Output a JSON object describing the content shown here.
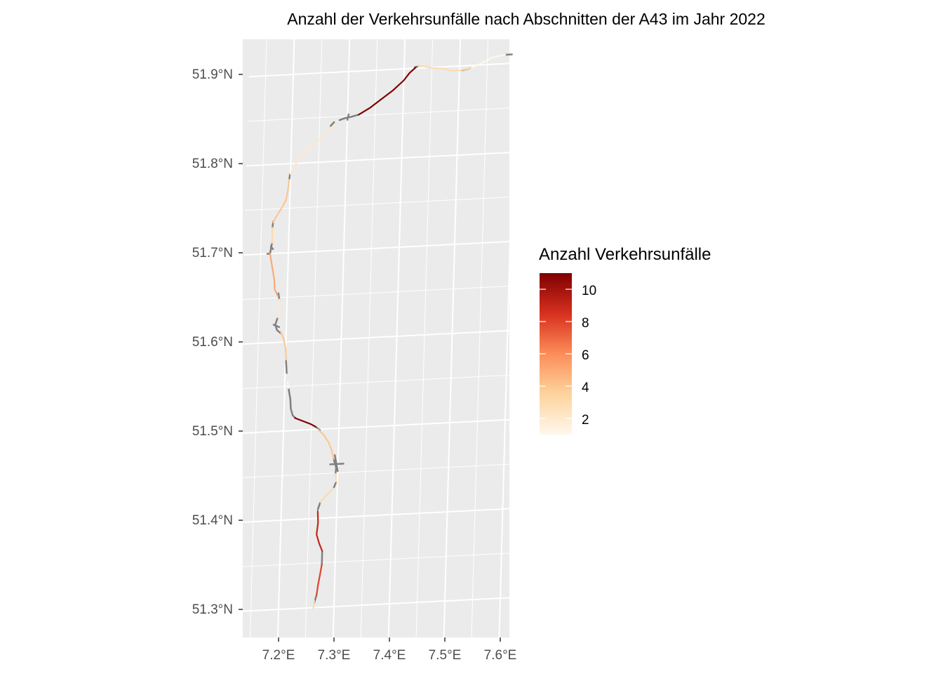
{
  "chart_data": {
    "type": "map",
    "title": "Anzahl der Verkehrsunfälle nach Abschnitten der A43 im Jahr 2022",
    "xlabel": "",
    "ylabel": "",
    "x_ticks": [
      "7.2°E",
      "7.3°E",
      "7.4°E",
      "7.5°E",
      "7.6°E"
    ],
    "y_ticks": [
      "51.3°N",
      "51.4°N",
      "51.5°N",
      "51.6°N",
      "51.7°N",
      "51.8°N",
      "51.9°N"
    ],
    "lon_range": [
      7.14,
      7.62
    ],
    "lat_range": [
      51.27,
      51.94
    ],
    "grid": true,
    "panel_background": "#ebebeb",
    "no_data_color": "#808080",
    "legend": {
      "title": "Anzahl Verkehrsunfälle",
      "placement": "right",
      "labels": [
        "2",
        "4",
        "6",
        "8",
        "10"
      ],
      "range": [
        1,
        11
      ],
      "colors": [
        "#fff7ec",
        "#fdd49e",
        "#fc8d59",
        "#d7301f",
        "#7f0000"
      ]
    },
    "segments": [
      {
        "value": 1,
        "points": [
          [
            7.582,
            51.91
          ],
          [
            7.56,
            51.908
          ],
          [
            7.54,
            51.902
          ],
          [
            7.52,
            51.897
          ]
        ]
      },
      {
        "value": 3,
        "points": [
          [
            7.52,
            51.897
          ],
          [
            7.5,
            51.895
          ],
          [
            7.485,
            51.895
          ],
          [
            7.47,
            51.898
          ],
          [
            7.455,
            51.899
          ],
          [
            7.445,
            51.9
          ],
          [
            7.435,
            51.902
          ],
          [
            7.426,
            51.902
          ]
        ]
      },
      {
        "value": 11,
        "points": [
          [
            7.421,
            51.901
          ],
          [
            7.41,
            51.895
          ],
          [
            7.4,
            51.887
          ],
          [
            7.38,
            51.876
          ],
          [
            7.36,
            51.867
          ],
          [
            7.34,
            51.858
          ],
          [
            7.32,
            51.851
          ]
        ]
      },
      {
        "value": 2,
        "points": [
          [
            7.282,
            51.845
          ],
          [
            7.27,
            51.836
          ],
          [
            7.25,
            51.824
          ],
          [
            7.23,
            51.814
          ],
          [
            7.215,
            51.805
          ],
          [
            7.205,
            51.796
          ],
          [
            7.2,
            51.788
          ]
        ]
      },
      {
        "value": 4,
        "points": [
          [
            7.198,
            51.782
          ],
          [
            7.196,
            51.77
          ],
          [
            7.193,
            51.759
          ],
          [
            7.185,
            51.75
          ],
          [
            7.176,
            51.741
          ],
          [
            7.171,
            51.735
          ]
        ]
      },
      {
        "value": 3,
        "points": [
          [
            7.17,
            51.729
          ],
          [
            7.17,
            51.72
          ],
          [
            7.17,
            51.712
          ]
        ]
      },
      {
        "value": 5,
        "points": [
          [
            7.167,
            51.7
          ],
          [
            7.17,
            51.69
          ],
          [
            7.173,
            51.68
          ],
          [
            7.176,
            51.67
          ],
          [
            7.177,
            51.66
          ],
          [
            7.183,
            51.652
          ]
        ]
      },
      {
        "value": 2,
        "points": [
          [
            7.186,
            51.648
          ],
          [
            7.186,
            51.638
          ],
          [
            7.184,
            51.628
          ]
        ]
      },
      {
        "value": 4,
        "points": [
          [
            7.19,
            51.612
          ],
          [
            7.196,
            51.603
          ],
          [
            7.2,
            51.592
          ],
          [
            7.201,
            51.58
          ]
        ]
      },
      {
        "value": 1,
        "points": [
          [
            7.205,
            51.555
          ],
          [
            7.207,
            51.548
          ]
        ]
      },
      {
        "value": 11,
        "points": [
          [
            7.22,
            51.514
          ],
          [
            7.235,
            51.51
          ],
          [
            7.25,
            51.506
          ],
          [
            7.258,
            51.503
          ]
        ]
      },
      {
        "value": 4,
        "points": [
          [
            7.262,
            51.5
          ],
          [
            7.272,
            51.494
          ],
          [
            7.282,
            51.485
          ],
          [
            7.289,
            51.474
          ],
          [
            7.292,
            51.466
          ]
        ]
      },
      {
        "value": 3,
        "points": [
          [
            7.296,
            51.449
          ],
          [
            7.298,
            51.44
          ]
        ]
      },
      {
        "value": 3,
        "points": [
          [
            7.291,
            51.432
          ],
          [
            7.28,
            51.425
          ],
          [
            7.27,
            51.418
          ]
        ]
      },
      {
        "value": 9,
        "points": [
          [
            7.266,
            51.408
          ],
          [
            7.267,
            51.395
          ],
          [
            7.265,
            51.382
          ],
          [
            7.27,
            51.372
          ],
          [
            7.276,
            51.363
          ]
        ]
      },
      {
        "value": 8,
        "points": [
          [
            7.276,
            51.348
          ],
          [
            7.273,
            51.336
          ],
          [
            7.27,
            51.325
          ],
          [
            7.268,
            51.314
          ]
        ]
      },
      {
        "value": 3,
        "points": [
          [
            7.264,
            51.308
          ],
          [
            7.263,
            51.299
          ]
        ]
      }
    ],
    "no_data_segments": [
      {
        "points": [
          [
            7.582,
            51.91
          ],
          [
            7.594,
            51.91
          ]
        ]
      },
      {
        "points": [
          [
            7.426,
            51.902
          ],
          [
            7.419,
            51.901
          ]
        ]
      },
      {
        "points": [
          [
            7.52,
            51.897
          ],
          [
            7.505,
            51.895
          ]
        ]
      },
      {
        "points": [
          [
            7.32,
            51.851
          ],
          [
            7.306,
            51.849
          ],
          [
            7.296,
            51.848
          ],
          [
            7.286,
            51.846
          ]
        ]
      },
      {
        "points": [
          [
            7.302,
            51.852
          ],
          [
            7.3,
            51.846
          ]
        ]
      },
      {
        "points": [
          [
            7.276,
            51.844
          ],
          [
            7.27,
            51.84
          ]
        ]
      },
      {
        "points": [
          [
            7.199,
            51.788
          ],
          [
            7.198,
            51.782
          ]
        ]
      },
      {
        "points": [
          [
            7.171,
            51.736
          ],
          [
            7.17,
            51.729
          ]
        ]
      },
      {
        "points": [
          [
            7.17,
            51.712
          ],
          [
            7.167,
            51.7
          ],
          [
            7.162,
            51.7
          ]
        ]
      },
      {
        "points": [
          [
            7.168,
            51.708
          ],
          [
            7.172,
            51.705
          ]
        ]
      },
      {
        "points": [
          [
            7.184,
            51.655
          ],
          [
            7.186,
            51.648
          ]
        ]
      },
      {
        "points": [
          [
            7.184,
            51.628
          ],
          [
            7.18,
            51.62
          ],
          [
            7.183,
            51.614
          ],
          [
            7.19,
            51.61
          ]
        ]
      },
      {
        "points": [
          [
            7.177,
            51.62
          ],
          [
            7.187,
            51.617
          ]
        ]
      },
      {
        "points": [
          [
            7.201,
            51.58
          ],
          [
            7.203,
            51.565
          ]
        ]
      },
      {
        "points": [
          [
            7.207,
            51.548
          ],
          [
            7.211,
            51.535
          ],
          [
            7.212,
            51.525
          ],
          [
            7.216,
            51.517
          ],
          [
            7.221,
            51.514
          ]
        ]
      },
      {
        "points": [
          [
            7.258,
            51.503
          ],
          [
            7.266,
            51.499
          ]
        ]
      },
      {
        "points": [
          [
            7.292,
            51.466
          ],
          [
            7.297,
            51.456
          ],
          [
            7.296,
            51.449
          ]
        ]
      },
      {
        "points": [
          [
            7.286,
            51.46
          ],
          [
            7.31,
            51.46
          ]
        ]
      },
      {
        "points": [
          [
            7.294,
            51.47
          ],
          [
            7.3,
            51.452
          ]
        ]
      },
      {
        "points": [
          [
            7.298,
            51.44
          ],
          [
            7.294,
            51.434
          ]
        ]
      },
      {
        "points": [
          [
            7.27,
            51.418
          ],
          [
            7.266,
            51.41
          ]
        ]
      },
      {
        "points": [
          [
            7.276,
            51.363
          ],
          [
            7.276,
            51.348
          ]
        ]
      },
      {
        "points": [
          [
            7.268,
            51.314
          ],
          [
            7.264,
            51.305
          ]
        ]
      }
    ]
  }
}
